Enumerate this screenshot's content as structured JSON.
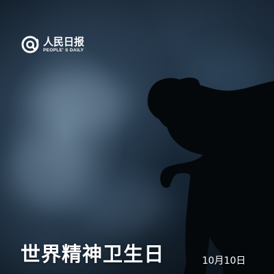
{
  "logo": {
    "name_cn": "人民日报",
    "name_en": "PEOPLE' S DAILY",
    "icon": "at-sign-speaker-icon"
  },
  "title": "世界精神卫生日",
  "date": "10月10日",
  "colors": {
    "background_dark": "#0c1520",
    "mist": "#9fb6c9",
    "silhouette": "#05080b",
    "text": "#ffffff"
  }
}
